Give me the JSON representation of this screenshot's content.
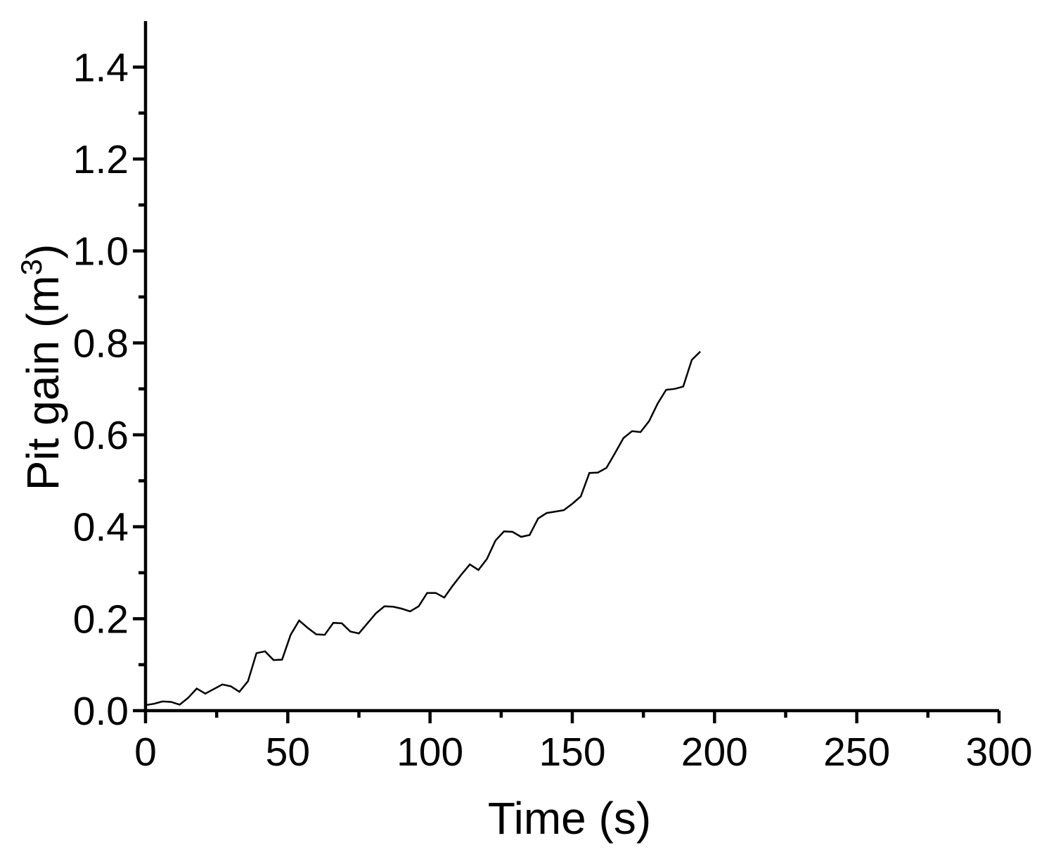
{
  "figure": {
    "background": "#ffffff",
    "axis_color": "#000000"
  },
  "chart_data": {
    "type": "line",
    "title": "",
    "xlabel": "Time (s)",
    "ylabel": "Pit gain (m³)",
    "ylabel_parts": {
      "base": "Pit gain (m",
      "sup": "3",
      "close": ")"
    },
    "xlim": [
      0,
      300
    ],
    "ylim": [
      0,
      1.5
    ],
    "grid": false,
    "legend": "none",
    "line_color": "#000000",
    "x_major_ticks": [
      0,
      50,
      100,
      150,
      200,
      250,
      300
    ],
    "x_major_tick_labels": [
      "0",
      "50",
      "100",
      "150",
      "200",
      "250",
      "300"
    ],
    "x_minor_ticks": [
      25,
      75,
      125,
      175,
      225,
      275
    ],
    "y_major_ticks": [
      0.0,
      0.2,
      0.4,
      0.6,
      0.8,
      1.0,
      1.2,
      1.4
    ],
    "y_major_tick_labels": [
      "0.0",
      "0.2",
      "0.4",
      "0.6",
      "0.8",
      "1.0",
      "1.2",
      "1.4"
    ],
    "y_minor_ticks": [
      0.1,
      0.3,
      0.5,
      0.7,
      0.9,
      1.1,
      1.3
    ],
    "series": [
      {
        "name": "Pit gain",
        "x": [
          0,
          3,
          6,
          9,
          12,
          15,
          18,
          21,
          24,
          27,
          30,
          33,
          36,
          39,
          42,
          45,
          48,
          51,
          54,
          57,
          60,
          63,
          66,
          69,
          72,
          75,
          78,
          81,
          84,
          87,
          90,
          93,
          96,
          99,
          102,
          105,
          108,
          111,
          114,
          117,
          120,
          123,
          126,
          129,
          132,
          135,
          138,
          141,
          144,
          147,
          150,
          153,
          156,
          159,
          162,
          165,
          168,
          171,
          174,
          177,
          180,
          183,
          186,
          189,
          192,
          195
        ],
        "y": [
          0.012,
          0.015,
          0.02,
          0.019,
          0.013,
          0.028,
          0.048,
          0.037,
          0.047,
          0.057,
          0.053,
          0.041,
          0.064,
          0.125,
          0.129,
          0.11,
          0.111,
          0.165,
          0.196,
          0.18,
          0.166,
          0.165,
          0.191,
          0.19,
          0.172,
          0.168,
          0.19,
          0.212,
          0.227,
          0.226,
          0.222,
          0.216,
          0.227,
          0.256,
          0.256,
          0.246,
          0.272,
          0.296,
          0.318,
          0.306,
          0.33,
          0.37,
          0.39,
          0.389,
          0.378,
          0.382,
          0.418,
          0.43,
          0.433,
          0.436,
          0.45,
          0.466,
          0.517,
          0.518,
          0.528,
          0.56,
          0.593,
          0.608,
          0.606,
          0.63,
          0.668,
          0.698,
          0.7,
          0.705,
          0.763,
          0.781
        ]
      }
    ]
  }
}
